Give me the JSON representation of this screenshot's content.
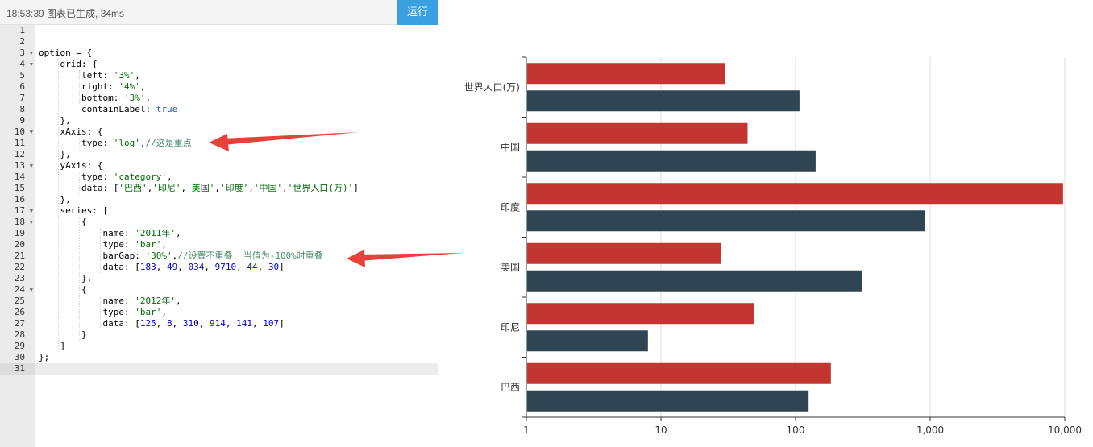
{
  "toolbar": {
    "status": "18:53:39   图表已生成, 34ms",
    "run_label": "运行"
  },
  "editor": {
    "line_count": 31,
    "fold_lines": [
      3,
      4,
      10,
      13,
      17,
      18,
      24
    ],
    "active_line": 31,
    "lines": [
      [],
      [],
      [
        [
          "",
          "option = {"
        ]
      ],
      [
        [
          "",
          "    grid: {"
        ]
      ],
      [
        [
          "",
          "        left: "
        ],
        [
          "s",
          "'3%'"
        ],
        [
          "",
          ","
        ]
      ],
      [
        [
          "",
          "        right: "
        ],
        [
          "s",
          "'4%'"
        ],
        [
          "",
          ","
        ]
      ],
      [
        [
          "",
          "        bottom: "
        ],
        [
          "s",
          "'3%'"
        ],
        [
          "",
          ","
        ]
      ],
      [
        [
          "",
          "        containLabel: "
        ],
        [
          "b",
          "true"
        ]
      ],
      [
        [
          "",
          "    },"
        ]
      ],
      [
        [
          "",
          "    xAxis: {"
        ]
      ],
      [
        [
          "",
          "        type: "
        ],
        [
          "s",
          "'log'"
        ],
        [
          "",
          ","
        ],
        [
          "c",
          "//这是重点"
        ]
      ],
      [
        [
          "",
          "    },"
        ]
      ],
      [
        [
          "",
          "    yAxis: {"
        ]
      ],
      [
        [
          "",
          "        type: "
        ],
        [
          "s",
          "'category'"
        ],
        [
          "",
          ","
        ]
      ],
      [
        [
          "",
          "        data: ["
        ],
        [
          "s",
          "'巴西'"
        ],
        [
          "",
          ","
        ],
        [
          "s",
          "'印尼'"
        ],
        [
          "",
          ","
        ],
        [
          "s",
          "'美国'"
        ],
        [
          "",
          ","
        ],
        [
          "s",
          "'印度'"
        ],
        [
          "",
          ","
        ],
        [
          "s",
          "'中国'"
        ],
        [
          "",
          ","
        ],
        [
          "s",
          "'世界人口(万)'"
        ],
        [
          "",
          "]"
        ]
      ],
      [
        [
          "",
          "    },"
        ]
      ],
      [
        [
          "",
          "    series: ["
        ]
      ],
      [
        [
          "",
          "        {"
        ]
      ],
      [
        [
          "",
          "            name: "
        ],
        [
          "s",
          "'2011年'"
        ],
        [
          "",
          ","
        ]
      ],
      [
        [
          "",
          "            type: "
        ],
        [
          "s",
          "'bar'"
        ],
        [
          "",
          ","
        ]
      ],
      [
        [
          "",
          "            barGap: "
        ],
        [
          "s",
          "'30%'"
        ],
        [
          "",
          ","
        ],
        [
          "c",
          "//设置不重叠  当值为-100%时重叠"
        ]
      ],
      [
        [
          "",
          "            data: ["
        ],
        [
          "n",
          "183"
        ],
        [
          "",
          ", "
        ],
        [
          "n",
          "49"
        ],
        [
          "",
          ", "
        ],
        [
          "n",
          "034"
        ],
        [
          "",
          ", "
        ],
        [
          "n",
          "9710"
        ],
        [
          "",
          ", "
        ],
        [
          "n",
          "44"
        ],
        [
          "",
          ", "
        ],
        [
          "n",
          "30"
        ],
        [
          "",
          "]"
        ]
      ],
      [
        [
          "",
          "        },"
        ]
      ],
      [
        [
          "",
          "        {"
        ]
      ],
      [
        [
          "",
          "            name: "
        ],
        [
          "s",
          "'2012年'"
        ],
        [
          "",
          ","
        ]
      ],
      [
        [
          "",
          "            type: "
        ],
        [
          "s",
          "'bar'"
        ],
        [
          "",
          ","
        ]
      ],
      [
        [
          "",
          "            data: ["
        ],
        [
          "n",
          "125"
        ],
        [
          "",
          ", "
        ],
        [
          "n",
          "8"
        ],
        [
          "",
          ", "
        ],
        [
          "n",
          "310"
        ],
        [
          "",
          ", "
        ],
        [
          "n",
          "914"
        ],
        [
          "",
          ", "
        ],
        [
          "n",
          "141"
        ],
        [
          "",
          ", "
        ],
        [
          "n",
          "107"
        ],
        [
          "",
          "]"
        ]
      ],
      [
        [
          "",
          "        }"
        ]
      ],
      [
        [
          "",
          "    ]"
        ]
      ],
      [
        [
          "",
          "};"
        ]
      ],
      []
    ]
  },
  "colors": {
    "series_2011": "#c23531",
    "series_2012": "#2f4554",
    "annotation_arrow": "#e8413a",
    "run_button": "#3aa0e0"
  },
  "chart_data": {
    "type": "bar",
    "orientation": "horizontal",
    "x_scale": "log",
    "xlim": [
      1,
      10000
    ],
    "x_ticks": [
      "1",
      "10",
      "100",
      "1,000",
      "10,000"
    ],
    "categories": [
      "巴西",
      "印尼",
      "美国",
      "印度",
      "中国",
      "世界人口(万)"
    ],
    "series": [
      {
        "values": [
          183,
          49,
          28,
          9710,
          44,
          30
        ],
        "color": "#c23531"
      },
      {
        "values": [
          125,
          8,
          310,
          914,
          141,
          107
        ],
        "color": "#2f4554"
      }
    ],
    "grid": true,
    "legend": "none"
  }
}
